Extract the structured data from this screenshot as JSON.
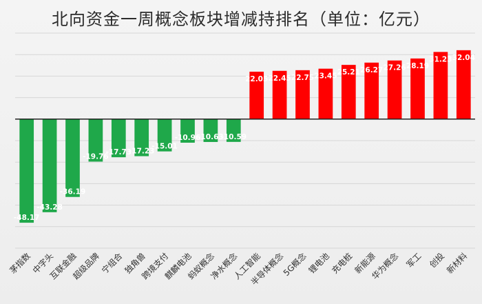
{
  "chart_data": {
    "type": "bar",
    "title": "北向资金一周概念板块增减持排名（单位：亿元）",
    "categories": [
      "茅指数",
      "中字头",
      "互联金融",
      "超级品牌",
      "宁组合",
      "独角兽",
      "跨境支付",
      "麒麟电池",
      "蚂蚁概念",
      "净水概念",
      "人工智能",
      "半导体概念",
      "5G概念",
      "锂电池",
      "充电桩",
      "新能源",
      "华为概念",
      "军工",
      "创投",
      "新材料"
    ],
    "values": [
      -48.17,
      -43.28,
      -36.19,
      -19.76,
      -17.73,
      -17.23,
      -15.01,
      -10.96,
      -10.63,
      -10.59,
      22.05,
      22.45,
      22.75,
      23.45,
      25.21,
      26.27,
      27.26,
      28.19,
      31.23,
      32.04
    ],
    "ylim": [
      -60,
      40
    ],
    "grid": true,
    "legend": "none",
    "colors": {
      "positive": "#ff0000",
      "negative": "#1fa84a",
      "grid": "#d6d6d6",
      "axis": "#222222"
    }
  }
}
